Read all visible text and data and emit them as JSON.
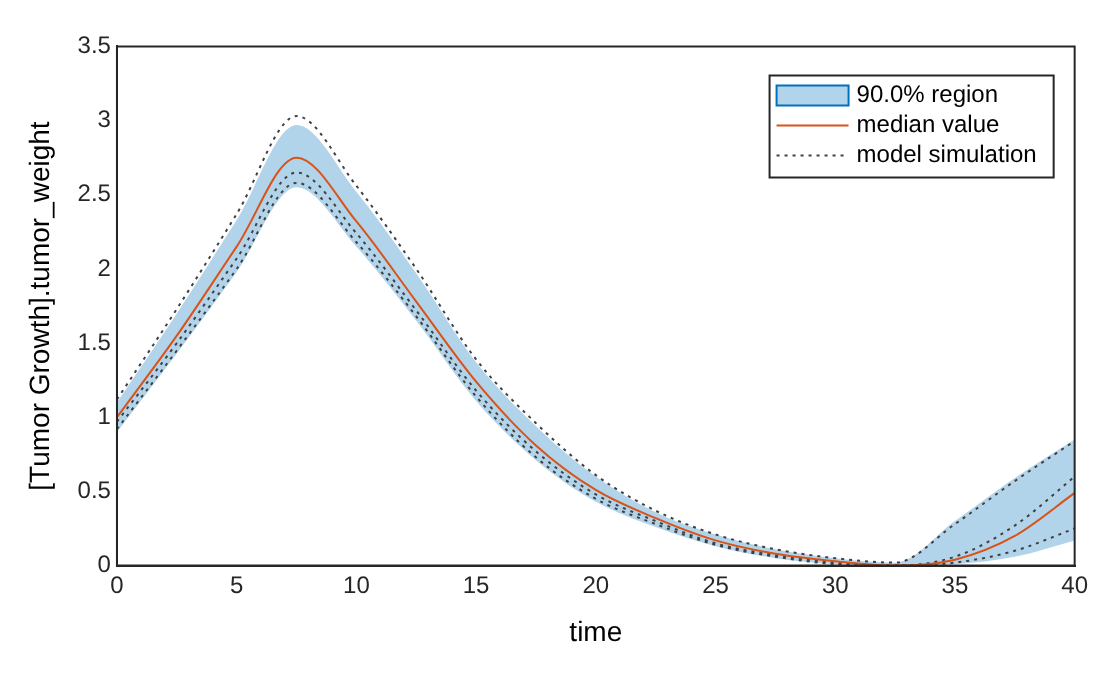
{
  "chart_data": {
    "type": "line",
    "xlabel": "time",
    "ylabel": "[Tumor Growth].tumor_weight",
    "x": [
      0,
      2.5,
      5,
      7.5,
      10,
      12.5,
      15,
      17.5,
      20,
      22.5,
      25,
      27.5,
      30,
      32.5,
      35,
      37.5,
      40
    ],
    "xlim": [
      0,
      40
    ],
    "xticks": [
      0,
      5,
      10,
      15,
      20,
      25,
      30,
      35,
      40
    ],
    "ylim": [
      0,
      3.5
    ],
    "yticks": [
      0,
      0.5,
      1,
      1.5,
      2,
      2.5,
      3,
      3.5
    ],
    "legend": "top right",
    "grid": false,
    "series": [
      {
        "name": "90.0% region",
        "type": "area",
        "color": "#0072bd",
        "values": [
          null,
          null,
          null,
          null,
          null,
          null,
          null,
          null,
          null,
          null,
          null,
          null,
          null,
          null,
          null,
          null,
          null
        ],
        "lower": [
          0.9,
          1.43,
          1.98,
          2.55,
          2.15,
          1.65,
          1.11,
          0.71,
          0.43,
          0.26,
          0.13,
          0.05,
          0.01,
          0.0,
          0.01,
          0.06,
          0.17
        ],
        "upper": [
          1.1,
          1.7,
          2.33,
          2.97,
          2.52,
          1.97,
          1.37,
          0.94,
          0.6,
          0.36,
          0.21,
          0.11,
          0.05,
          0.02,
          0.3,
          0.59,
          0.85
        ]
      },
      {
        "name": "median value",
        "color": "#d95319",
        "line_style": "solid",
        "values": [
          1.0,
          1.55,
          2.15,
          2.75,
          2.32,
          1.78,
          1.24,
          0.81,
          0.51,
          0.32,
          0.17,
          0.08,
          0.03,
          0.0,
          0.04,
          0.2,
          0.49
        ]
      },
      {
        "name": "model simulation",
        "color": "#404040",
        "line_style": "dotted",
        "values": [
          1.12,
          1.73,
          2.37,
          3.03,
          2.56,
          2.0,
          1.39,
          0.96,
          0.61,
          0.37,
          0.21,
          0.11,
          0.05,
          0.02,
          0.28,
          0.57,
          0.84
        ]
      },
      {
        "color": "#404040",
        "line_style": "dotted",
        "values": [
          0.97,
          1.5,
          2.07,
          2.65,
          2.24,
          1.72,
          1.18,
          0.77,
          0.48,
          0.3,
          0.15,
          0.07,
          0.02,
          0.0,
          0.06,
          0.27,
          0.6
        ]
      },
      {
        "color": "#404040",
        "line_style": "dotted",
        "values": [
          0.92,
          1.45,
          2.0,
          2.58,
          2.18,
          1.68,
          1.14,
          0.73,
          0.45,
          0.28,
          0.14,
          0.06,
          0.01,
          0.0,
          0.02,
          0.1,
          0.25
        ]
      }
    ]
  }
}
